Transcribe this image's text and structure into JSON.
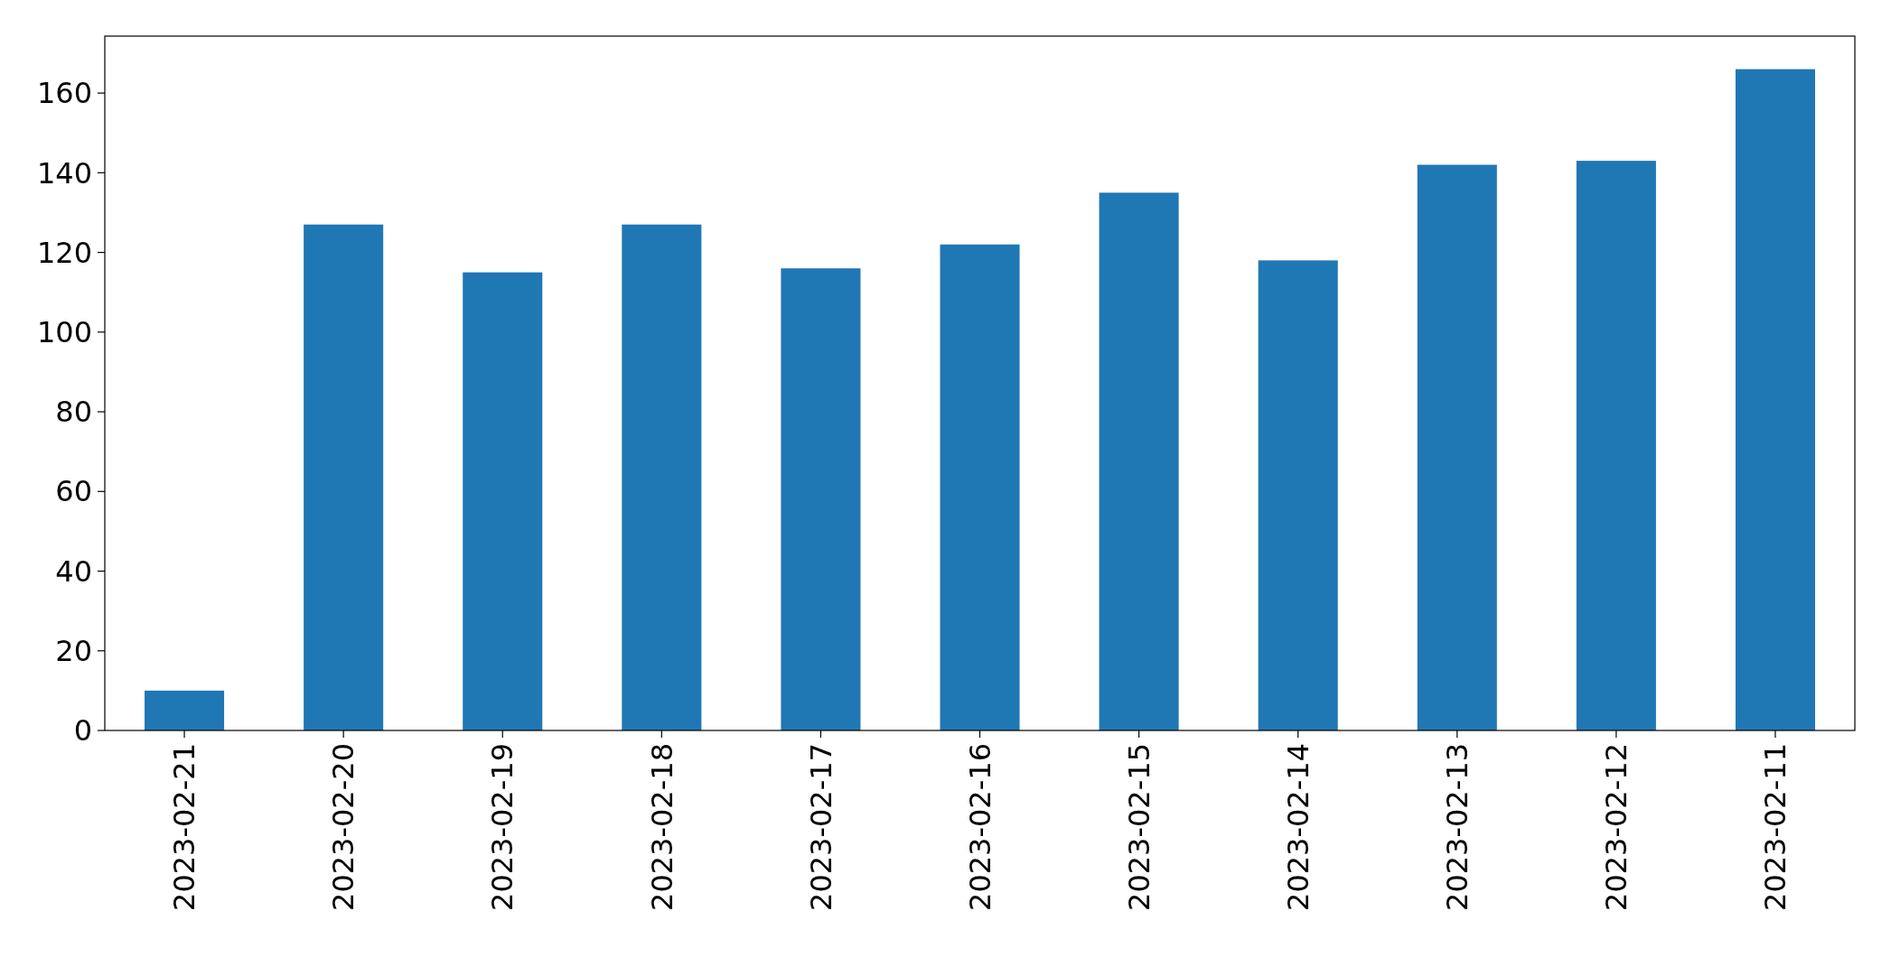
{
  "chart_data": {
    "type": "bar",
    "categories": [
      "2023-02-21",
      "2023-02-20",
      "2023-02-19",
      "2023-02-18",
      "2023-02-17",
      "2023-02-16",
      "2023-02-15",
      "2023-02-14",
      "2023-02-13",
      "2023-02-12",
      "2023-02-11"
    ],
    "values": [
      10,
      127,
      115,
      127,
      116,
      122,
      135,
      118,
      142,
      143,
      166
    ],
    "color": "#1f77b4",
    "ylim": [
      0,
      174.3
    ],
    "yticks": [
      0,
      20,
      40,
      60,
      80,
      100,
      120,
      140,
      160
    ],
    "grid": false
  }
}
